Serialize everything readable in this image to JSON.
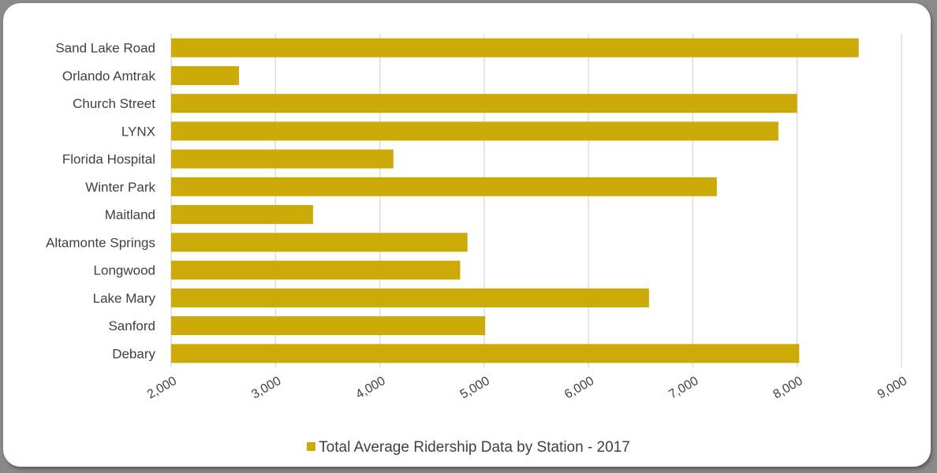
{
  "colors": {
    "bar": "#CCAB08",
    "grid": "#D9D9D9",
    "text": "#404040",
    "frame": "#8A8A8A"
  },
  "chart_data": {
    "type": "bar",
    "orientation": "horizontal",
    "title": "",
    "xlabel": "",
    "ylabel": "",
    "xlim": [
      2000,
      9000
    ],
    "ticks": [
      2000,
      3000,
      4000,
      5000,
      6000,
      7000,
      8000,
      9000
    ],
    "tick_labels": [
      "2,000",
      "3,000",
      "4,000",
      "5,000",
      "6,000",
      "7,000",
      "8,000",
      "9,000"
    ],
    "grid": true,
    "legend_position": "bottom",
    "categories": [
      "Sand Lake Road",
      "Orlando Amtrak",
      "Church Street",
      "LYNX",
      "Florida Hospital",
      "Winter Park",
      "Maitland",
      "Altamonte Springs",
      "Longwood",
      "Lake Mary",
      "Sanford",
      "Debary"
    ],
    "series": [
      {
        "name": "Total Average Ridership Data by Station - 2017",
        "values": [
          8590,
          2650,
          8000,
          7820,
          4130,
          7230,
          3360,
          4840,
          4770,
          6580,
          5010,
          8020
        ]
      }
    ]
  }
}
